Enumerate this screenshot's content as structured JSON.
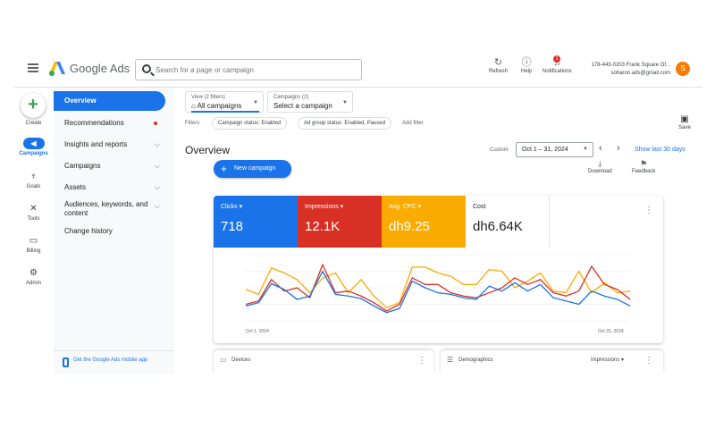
{
  "header": {
    "app_name": "Google Ads",
    "search_placeholder": "Search for a page or campaign",
    "refresh_label": "Refresh",
    "help_label": "Help",
    "notifications_label": "Notifications",
    "notifications_count": "1",
    "account_line1": "178-443-0203 Frank Square Of...",
    "account_line2": "soharon.ads@gmail.com",
    "avatar_letter": "S"
  },
  "rail": {
    "create_label": "Create",
    "items": [
      {
        "label": "Campaigns",
        "icon": "megaphone-icon"
      },
      {
        "label": "Goals",
        "icon": "trophy-icon"
      },
      {
        "label": "Tools",
        "icon": "tools-icon"
      },
      {
        "label": "Billing",
        "icon": "billing-icon"
      },
      {
        "label": "Admin",
        "icon": "gear-icon"
      }
    ]
  },
  "nav": {
    "items": [
      {
        "label": "Overview"
      },
      {
        "label": "Recommendations"
      },
      {
        "label": "Insights and reports"
      },
      {
        "label": "Campaigns"
      },
      {
        "label": "Assets"
      },
      {
        "label": "Audiences, keywords, and content"
      },
      {
        "label": "Change history"
      }
    ],
    "app_promo": "Get the Google Ads mobile app"
  },
  "filters": {
    "view_small": "View (2 filters)",
    "view_value": "All campaigns",
    "campaigns_small": "Campaigns (2)",
    "campaigns_value": "Select a campaign",
    "label": "Filters",
    "chips": [
      "Campaign status: Enabled",
      "Ad group status: Enabled, Paused"
    ],
    "add_filter": "Add filter",
    "save_label": "Save"
  },
  "overview": {
    "title": "Overview",
    "custom_label": "Custom",
    "date_range": "Oct 1 – 31, 2024",
    "show_last": "Show last 30 days",
    "new_campaign": "New campaign",
    "download_label": "Download",
    "feedback_label": "Feedback"
  },
  "metrics": [
    {
      "label": "Clicks",
      "value": "718",
      "color": "#1a73e8"
    },
    {
      "label": "Impressions",
      "value": "12.1K",
      "color": "#d93025"
    },
    {
      "label": "Avg. CPC",
      "value": "dh9.25",
      "color": "#f9ab00"
    },
    {
      "label": "Cost",
      "value": "dh6.64K",
      "color": "#ffffff"
    }
  ],
  "chart_data": {
    "type": "line",
    "x": [
      "Oct 1",
      "Oct 2",
      "Oct 3",
      "Oct 4",
      "Oct 5",
      "Oct 6",
      "Oct 7",
      "Oct 8",
      "Oct 9",
      "Oct 10",
      "Oct 11",
      "Oct 12",
      "Oct 13",
      "Oct 14",
      "Oct 15",
      "Oct 16",
      "Oct 17",
      "Oct 18",
      "Oct 19",
      "Oct 20",
      "Oct 21",
      "Oct 22",
      "Oct 23",
      "Oct 24",
      "Oct 25",
      "Oct 26",
      "Oct 27",
      "Oct 28",
      "Oct 29",
      "Oct 30",
      "Oct 31"
    ],
    "x_tick_labels": [
      "Oct 1, 2024",
      "Oct 31, 2024"
    ],
    "series": [
      {
        "name": "Clicks",
        "color": "#1a73e8",
        "values": [
          18,
          22,
          45,
          38,
          26,
          30,
          60,
          32,
          30,
          27,
          18,
          10,
          15,
          48,
          40,
          34,
          32,
          28,
          26,
          42,
          36,
          46,
          36,
          44,
          28,
          24,
          20,
          36,
          30,
          26,
          18
        ]
      },
      {
        "name": "Impressions",
        "color": "#d93025",
        "values": [
          20,
          24,
          50,
          36,
          40,
          28,
          68,
          34,
          36,
          30,
          22,
          12,
          20,
          52,
          44,
          44,
          34,
          30,
          28,
          34,
          40,
          52,
          44,
          50,
          34,
          30,
          36,
          66,
          44,
          38,
          26
        ]
      },
      {
        "name": "Avg. CPC",
        "color": "#f9ab00",
        "values": [
          38,
          32,
          64,
          58,
          50,
          34,
          52,
          58,
          34,
          50,
          30,
          16,
          22,
          65,
          65,
          58,
          54,
          44,
          44,
          62,
          60,
          40,
          48,
          58,
          36,
          34,
          60,
          34,
          46,
          34,
          36
        ]
      }
    ],
    "ylim": [
      0,
      80
    ],
    "grid": true
  },
  "bottom_cards": {
    "devices_title": "Devices",
    "demographics_title": "Demographics",
    "demographics_select": "Impressions"
  }
}
